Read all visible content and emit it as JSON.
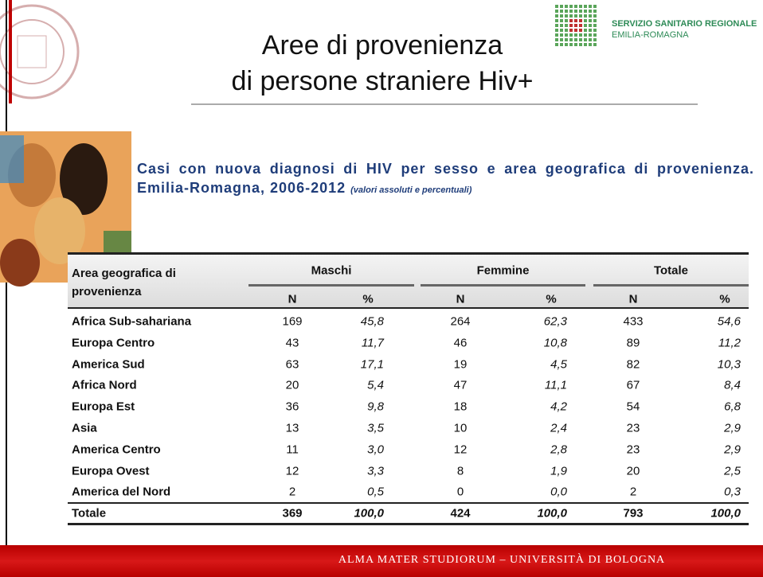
{
  "header": {
    "title": [
      "Aree di provenienza",
      "di persone straniere Hiv+"
    ],
    "logo_text": [
      "SERVIZIO SANITARIO REGIONALE",
      "EMILIA-ROMAGNA"
    ]
  },
  "caption": {
    "text": "Casi con nuova diagnosi di HIV per sesso e area geografica di provenienza. Emilia-Romagna, 2006-2012",
    "note": "(valori assoluti e percentuali)"
  },
  "table": {
    "area_header": "Area geografica di provenienza",
    "groups": [
      "Maschi",
      "Femmine",
      "Totale"
    ],
    "subheaders": [
      "N",
      "%"
    ],
    "rows": [
      [
        "Africa Sub-sahariana",
        "169",
        "45,8",
        "264",
        "62,3",
        "433",
        "54,6"
      ],
      [
        "Europa Centro",
        "43",
        "11,7",
        "46",
        "10,8",
        "89",
        "11,2"
      ],
      [
        "America Sud",
        "63",
        "17,1",
        "19",
        "4,5",
        "82",
        "10,3"
      ],
      [
        "Africa Nord",
        "20",
        "5,4",
        "47",
        "11,1",
        "67",
        "8,4"
      ],
      [
        "Europa Est",
        "36",
        "9,8",
        "18",
        "4,2",
        "54",
        "6,8"
      ],
      [
        "Asia",
        "13",
        "3,5",
        "10",
        "2,4",
        "23",
        "2,9"
      ],
      [
        "America Centro",
        "11",
        "3,0",
        "12",
        "2,8",
        "23",
        "2,9"
      ],
      [
        "Europa Ovest",
        "12",
        "3,3",
        "8",
        "1,9",
        "20",
        "2,5"
      ],
      [
        "America del Nord",
        "2",
        "0,5",
        "0",
        "0,0",
        "2",
        "0,3"
      ]
    ],
    "total": [
      "Totale",
      "369",
      "100,0",
      "424",
      "100,0",
      "793",
      "100,0"
    ]
  },
  "footer": "ALMA MATER STUDIORUM – UNIVERSITÀ DI BOLOGNA"
}
